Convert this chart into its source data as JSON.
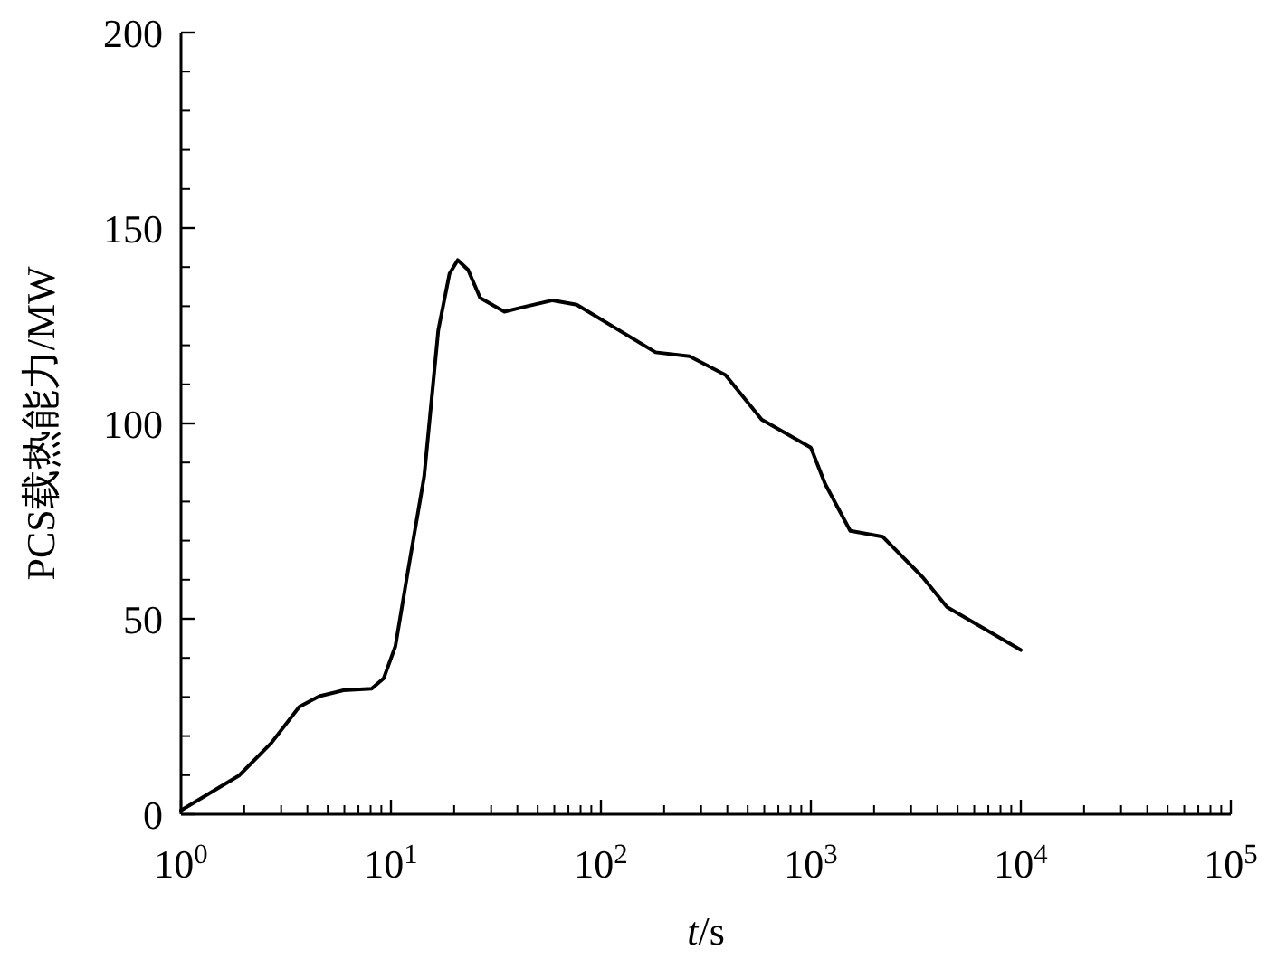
{
  "chart_data": {
    "type": "line",
    "xlabel": "*t*/s",
    "ylabel": "PCS载热能力/MW",
    "log": "x",
    "xlim": [
      1,
      100000
    ],
    "ylim": [
      0,
      200
    ],
    "xticks": [
      {
        "value": 1,
        "label": "10$^{0}$"
      },
      {
        "value": 10,
        "label": "10$^{1}$"
      },
      {
        "value": 100,
        "label": "10$^{2}$"
      },
      {
        "value": 1000,
        "label": "10$^{3}$"
      },
      {
        "value": 10000,
        "label": "10$^{4}$"
      },
      {
        "value": 100000,
        "label": "10$^{5}$"
      }
    ],
    "yticks": [
      0,
      50,
      100,
      150,
      200
    ],
    "grid": false,
    "marker": "none",
    "line_style": "solid",
    "series": [
      {
        "color": "#000000",
        "x": [
          1,
          1.89,
          2.69,
          3.66,
          4.56,
          5.94,
          8.09,
          9.24,
          10.5,
          12,
          14.4,
          16.8,
          19,
          20.8,
          23.3,
          26.6,
          34.7,
          41.4,
          58.9,
          76.7,
          182,
          264,
          392,
          583,
          1000,
          1170,
          1540,
          2200,
          3400,
          4450,
          10000
        ],
        "values": [
          1,
          9.9,
          18.2,
          27.5,
          30.2,
          31.7,
          32.1,
          34.8,
          43,
          61.7,
          86.5,
          123.8,
          138.3,
          141.8,
          139.3,
          132.1,
          128.6,
          129.6,
          131.5,
          130.4,
          118.2,
          117.2,
          112.4,
          101,
          93.8,
          84.5,
          72.5,
          71,
          60.7,
          53,
          42
        ]
      }
    ]
  }
}
